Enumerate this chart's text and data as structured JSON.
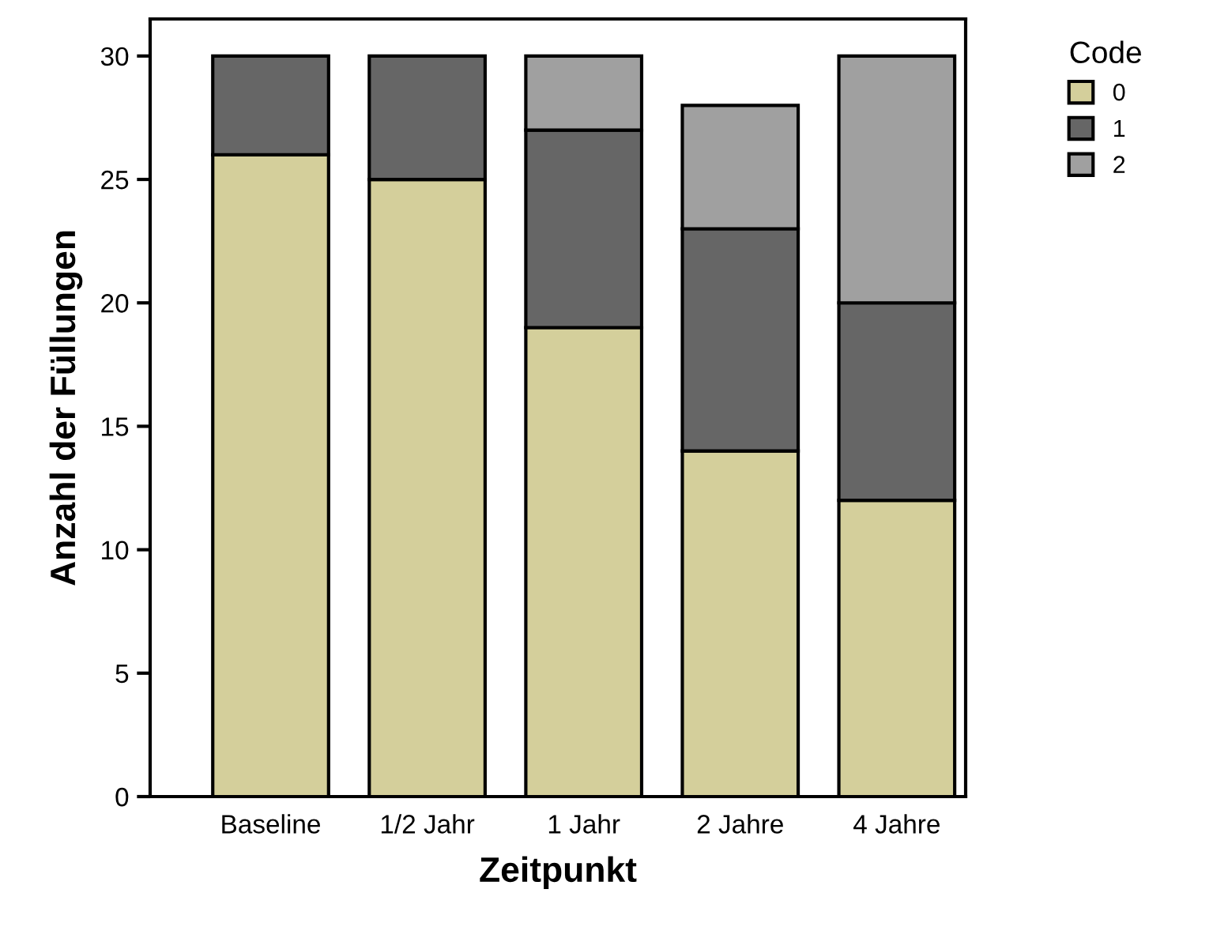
{
  "chart_data": {
    "type": "bar",
    "stacked": true,
    "xlabel": "Zeitpunkt",
    "ylabel": "Anzahl der Füllungen",
    "legend_title": "Code",
    "legend": "top right",
    "categories": [
      "Baseline",
      "1/2 Jahr",
      "1 Jahr",
      "2 Jahre",
      "4 Jahre"
    ],
    "series": [
      {
        "name": "0",
        "color": "#d4cf9b",
        "values": [
          26,
          25,
          19,
          14,
          12
        ]
      },
      {
        "name": "1",
        "color": "#666666",
        "values": [
          4,
          5,
          8,
          9,
          8
        ]
      },
      {
        "name": "2",
        "color": "#a0a0a0",
        "values": [
          null,
          null,
          3,
          5,
          10
        ]
      }
    ],
    "ylim": [
      0,
      31.5
    ],
    "yticks": [
      0,
      5,
      10,
      15,
      20,
      25,
      30
    ],
    "grid": false
  }
}
